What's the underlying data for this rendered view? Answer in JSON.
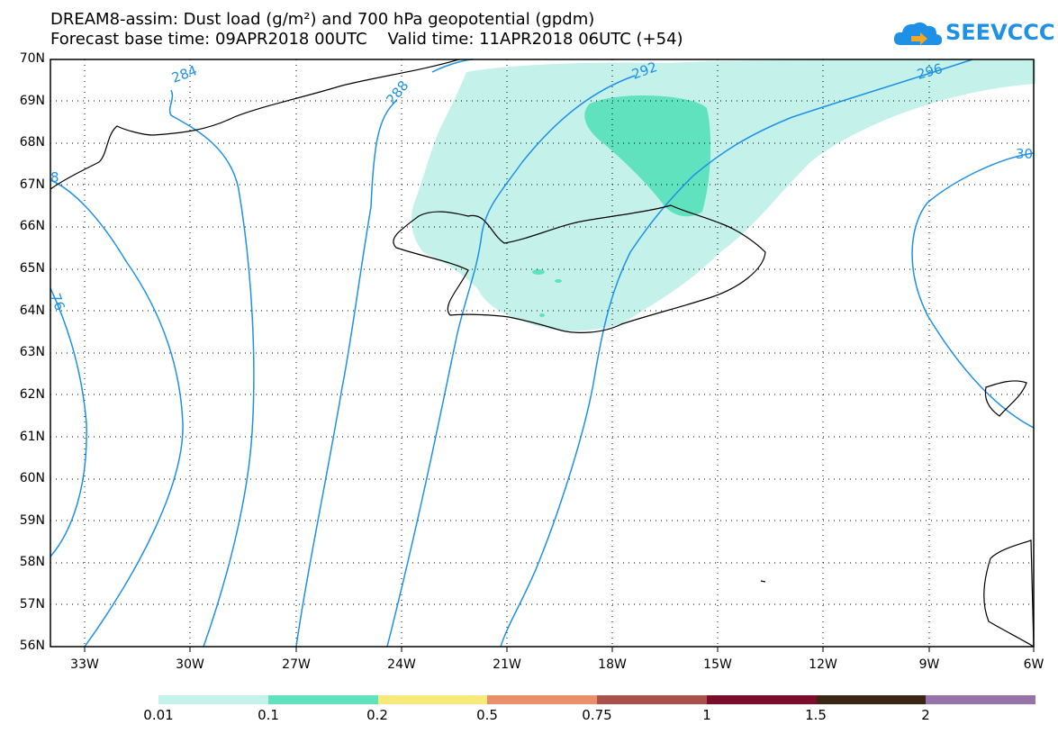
{
  "header": {
    "title_line1": "DREAM8-assim: Dust load (g/m²) and 700 hPa geopotential (gpdm)",
    "title_line2": "Forecast base time: 09APR2018 00UTC    Valid time: 11APR2018 06UTC (+54)"
  },
  "logo": {
    "text": "SEEVCCC",
    "icon": "cloud-icon"
  },
  "map": {
    "lat_labels": [
      "70N",
      "69N",
      "68N",
      "67N",
      "66N",
      "65N",
      "64N",
      "63N",
      "62N",
      "61N",
      "60N",
      "59N",
      "58N",
      "57N",
      "56N"
    ],
    "lon_labels": [
      "33W",
      "30W",
      "27W",
      "24W",
      "21W",
      "18W",
      "15W",
      "12W",
      "9W",
      "6W"
    ],
    "contour_color": "#1e90e6",
    "contour_labels": [
      "284",
      "288",
      "292",
      "296",
      "30",
      "76",
      "8"
    ],
    "coast_color": "#000000"
  },
  "legend": {
    "colors": [
      "#c4f2ea",
      "#5fe2bd",
      "#f7e97a",
      "#e98f6c",
      "#a9524c",
      "#7a0e2a",
      "#3a2612",
      "#9673a8"
    ],
    "labels": [
      "0.01",
      "0.1",
      "0.2",
      "0.5",
      "0.75",
      "1",
      "1.5",
      "2"
    ]
  }
}
